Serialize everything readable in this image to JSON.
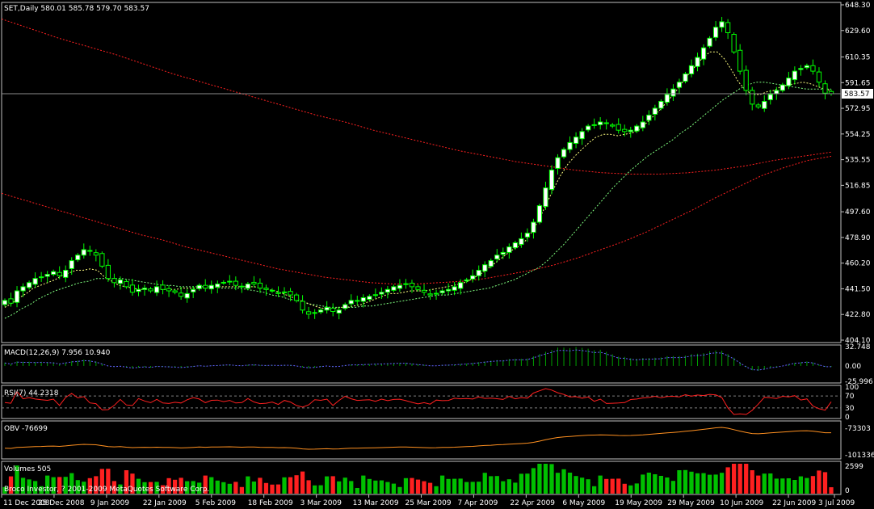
{
  "header": {
    "price_title": "SET,Daily  580.01 585.78 579.70 583.57",
    "macd_title": "MACD(12,26,9) 7.956 10.940",
    "rsi_title": "RSI(7) 44.2318",
    "obv_title": "OBV -76699",
    "volumes_title": "Volumes 505",
    "copyright": "Broco Investor, ? 2001-2009 MetaQuotes Software Corp."
  },
  "colors": {
    "background": "#000000",
    "grid_border": "#c0c0c0",
    "bull_candle": "#ffffff",
    "candle_outline": "#00ff00",
    "ma_fast": "#ffff80",
    "ma_mid": "#80ff80",
    "ma_slow": "#ff2020",
    "macd_hist": "#00a000",
    "macd_signal": "#6060ff",
    "rsi_line": "#ff2020",
    "obv_line": "#ff9020",
    "vol_up": "#00c000",
    "vol_down": "#ff2020"
  },
  "chart_data": [
    {
      "type": "candlestick",
      "name": "price",
      "title": "SET,Daily",
      "ohlc_last": {
        "open": 580.01,
        "high": 585.78,
        "low": 579.7,
        "close": 583.57
      },
      "current_price_label": "583.57",
      "y_ticks": [
        "648.30",
        "629.60",
        "610.35",
        "591.65",
        "572.95",
        "554.25",
        "535.55",
        "516.85",
        "497.60",
        "478.90",
        "460.20",
        "441.50",
        "422.80",
        "404.10"
      ],
      "ylim": [
        404.1,
        648.3
      ],
      "x_tick_labels": [
        "11 Dec 2008",
        "25 Dec 2008",
        "9 Jan 2009",
        "22 Jan 2009",
        "5 Feb 2009",
        "18 Feb 2009",
        "3 Mar 2009",
        "13 Mar 2009",
        "25 Mar 2009",
        "7 Apr 2009",
        "22 Apr 2009",
        "6 May 2009",
        "19 May 2009",
        "29 May 2009",
        "10 Jun 2009",
        "22 Jun 2009",
        "3 Jul 2009"
      ],
      "closes": [
        433,
        431,
        440,
        443,
        446,
        449,
        450,
        452,
        454,
        451,
        455,
        462,
        466,
        470,
        469,
        466,
        458,
        449,
        446,
        448,
        443,
        439,
        441,
        442,
        440,
        443,
        441,
        440,
        439,
        436,
        438,
        441,
        444,
        442,
        444,
        445,
        446,
        447,
        444,
        443,
        445,
        445,
        442,
        441,
        440,
        438,
        439,
        437,
        433,
        426,
        423,
        424,
        426,
        428,
        425,
        426,
        430,
        433,
        433,
        435,
        436,
        437,
        439,
        441,
        443,
        444,
        445,
        443,
        441,
        439,
        437,
        438,
        440,
        441,
        443,
        446,
        448,
        451,
        455,
        459,
        462,
        466,
        468,
        472,
        475,
        478,
        482,
        490,
        502,
        515,
        528,
        537,
        543,
        548,
        552,
        556,
        560,
        561,
        563,
        562,
        560,
        557,
        556,
        557,
        560,
        563,
        568,
        573,
        578,
        583,
        587,
        592,
        598,
        604,
        610,
        617,
        624,
        632,
        636,
        628,
        614,
        600,
        586,
        576,
        574,
        578,
        583,
        586,
        590,
        595,
        600,
        602,
        604,
        600,
        592,
        584,
        583.57
      ],
      "ma_fast": [
        428,
        431,
        435,
        438,
        442,
        444,
        446,
        448,
        451,
        453,
        455,
        455,
        456,
        455,
        450,
        447,
        444,
        443,
        442,
        441,
        441,
        441,
        441,
        441,
        441,
        442,
        442,
        442,
        442,
        442,
        443,
        443,
        443,
        443,
        443,
        443,
        442,
        441,
        440,
        438,
        436,
        434,
        432,
        430,
        428,
        427,
        427,
        428,
        428,
        429,
        430,
        432,
        434,
        436,
        438,
        438,
        439,
        440,
        440,
        440,
        441,
        442,
        443,
        444,
        445,
        447,
        450,
        453,
        457,
        461,
        465,
        469,
        472,
        476,
        483,
        492,
        503,
        514,
        524,
        532,
        538,
        543,
        548,
        552,
        554,
        554,
        553,
        554,
        555,
        557,
        562,
        567,
        572,
        578,
        584,
        591,
        598,
        604,
        610,
        614,
        614,
        609,
        601,
        592,
        586,
        583,
        583,
        585,
        586,
        589,
        590,
        591,
        592,
        591,
        589,
        587,
        586
      ],
      "ma_mid": [
        420,
        423,
        427,
        430,
        434,
        437,
        440,
        442,
        444,
        446,
        447,
        449,
        449,
        449,
        449,
        448,
        447,
        446,
        445,
        444,
        444,
        443,
        443,
        443,
        443,
        443,
        442,
        442,
        442,
        441,
        440,
        439,
        437,
        436,
        434,
        433,
        431,
        430,
        429,
        428,
        428,
        428,
        428,
        429,
        429,
        430,
        431,
        432,
        433,
        434,
        435,
        436,
        437,
        437,
        438,
        439,
        440,
        441,
        442,
        444,
        446,
        448,
        451,
        454,
        457,
        462,
        468,
        474,
        481,
        488,
        495,
        502,
        509,
        516,
        522,
        528,
        533,
        538,
        542,
        546,
        550,
        555,
        559,
        564,
        569,
        574,
        579,
        583,
        587,
        590,
        592,
        592,
        591,
        590,
        589,
        588,
        587,
        587,
        587,
        587
      ],
      "ma_slow_upper": [
        638,
        631,
        624,
        618,
        612,
        605,
        598,
        592,
        586,
        580,
        574,
        568,
        563,
        557,
        552,
        547,
        542,
        538,
        534,
        531,
        528,
        526,
        525,
        525,
        526,
        528,
        531,
        535,
        538,
        541
      ],
      "ma_slow_lower": [
        511,
        506,
        501,
        496,
        491,
        486,
        481,
        477,
        472,
        468,
        464,
        460,
        456,
        453,
        450,
        448,
        446,
        445,
        445,
        446,
        447,
        449,
        452,
        455,
        459,
        464,
        470,
        476,
        483,
        491,
        499,
        508,
        516,
        524,
        530,
        535,
        538
      ]
    },
    {
      "type": "bar",
      "name": "macd",
      "title": "MACD(12,26,9)",
      "macd": 7.956,
      "signal": 10.94,
      "y_ticks": [
        "32.748",
        "0.00",
        "-25.996"
      ],
      "ylim": [
        -25.996,
        32.748
      ]
    },
    {
      "type": "line",
      "name": "rsi",
      "title": "RSI(7)",
      "last": 44.2318,
      "levels": [
        70,
        30
      ],
      "y_ticks": [
        "100",
        "70",
        "30",
        "0"
      ],
      "ylim": [
        0,
        100
      ]
    },
    {
      "type": "line",
      "name": "obv",
      "title": "OBV",
      "last": -76699,
      "y_ticks": [
        "-73303",
        "-101336"
      ],
      "ylim": [
        -101336,
        -73303
      ]
    },
    {
      "type": "bar",
      "name": "volumes",
      "title": "Volumes",
      "last": 505,
      "y_ticks": [
        "2599",
        "0"
      ],
      "ylim": [
        0,
        2599
      ]
    }
  ]
}
